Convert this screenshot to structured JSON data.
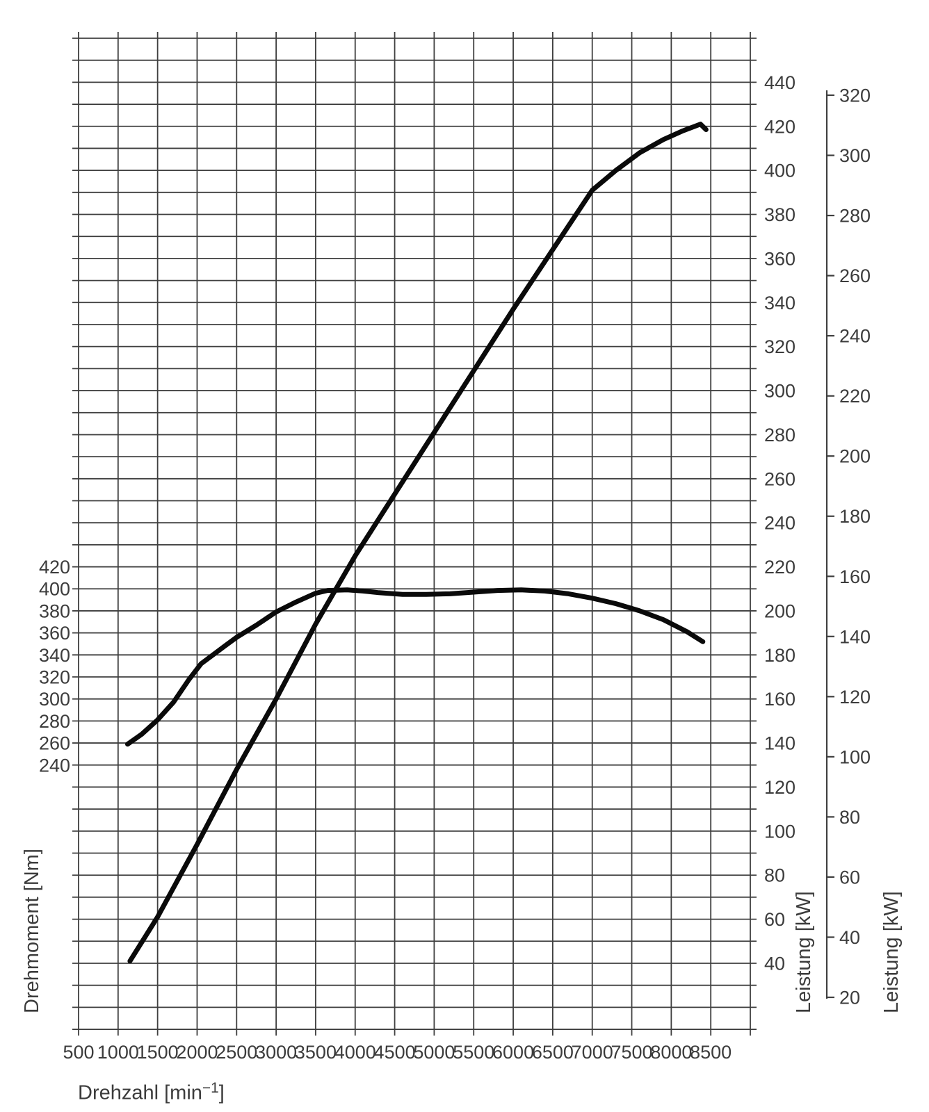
{
  "colors": {
    "background": "#ffffff",
    "grid": "#3f3f3f",
    "curve": "#0a0a0a",
    "text": "#3c3c3c"
  },
  "chart_data": {
    "type": "line",
    "title": "",
    "x": {
      "label": "Drehzahl [min⁻¹]",
      "label_prefix": "Drehzahl [min",
      "label_sup": "−1",
      "label_suffix": "]",
      "min": 500,
      "max": 9000,
      "gridline_step": 500,
      "tick_labels": [
        "500",
        "1000",
        "1500",
        "2000",
        "2500",
        "3000",
        "3500",
        "4000",
        "4500",
        "5000",
        "5500",
        "6000",
        "6500",
        "7000",
        "7500",
        "8000",
        "8500"
      ]
    },
    "y_left": {
      "label": "Drehmoment [Nm]",
      "unit": "Nm",
      "nm_per_gridrow": 20,
      "tick_labels": [
        "420",
        "400",
        "380",
        "360",
        "340",
        "320",
        "300",
        "280",
        "260",
        "240"
      ]
    },
    "y_right_inner": {
      "label": "Leistung [kW]",
      "min": 40,
      "max": 440,
      "tick_step": 10,
      "label_step": 20,
      "tick_labels": [
        "440",
        "420",
        "400",
        "380",
        "360",
        "340",
        "320",
        "300",
        "280",
        "260",
        "240",
        "220",
        "200",
        "180",
        "160",
        "140",
        "120",
        "100",
        "80",
        "60",
        "40"
      ]
    },
    "y_right_outer": {
      "label": "Leistung [kW]",
      "min": 20,
      "max": 320,
      "label_step": 20,
      "tick_labels": [
        "320",
        "300",
        "280",
        "260",
        "240",
        "220",
        "200",
        "180",
        "160",
        "140",
        "120",
        "100",
        "80",
        "60",
        "40",
        "20"
      ]
    },
    "grid": {
      "columns": 17,
      "rows": 45
    },
    "series": [
      {
        "id": "torque-curve",
        "name": "Drehmoment",
        "unit": "Nm",
        "axis": "y_left",
        "peak": "≈399 Nm @ 3700–6300 min⁻¹",
        "points": [
          [
            1120,
            259
          ],
          [
            1300,
            268
          ],
          [
            1500,
            281
          ],
          [
            1700,
            297
          ],
          [
            1900,
            318
          ],
          [
            2050,
            332
          ],
          [
            2200,
            340
          ],
          [
            2350,
            348
          ],
          [
            2500,
            356
          ],
          [
            2750,
            367
          ],
          [
            3000,
            379
          ],
          [
            3250,
            388
          ],
          [
            3500,
            396
          ],
          [
            3650,
            398.5
          ],
          [
            3900,
            399
          ],
          [
            4100,
            398
          ],
          [
            4300,
            396.5
          ],
          [
            4600,
            395
          ],
          [
            4900,
            395
          ],
          [
            5200,
            395.5
          ],
          [
            5500,
            397
          ],
          [
            5800,
            398.5
          ],
          [
            6100,
            399
          ],
          [
            6400,
            398
          ],
          [
            6700,
            395.5
          ],
          [
            7000,
            391.5
          ],
          [
            7300,
            386.5
          ],
          [
            7600,
            380
          ],
          [
            7900,
            372
          ],
          [
            8200,
            361
          ],
          [
            8400,
            352
          ]
        ]
      },
      {
        "id": "power-curve",
        "name": "Leistung",
        "unit": "kW",
        "axis": "y_right_inner",
        "peak": "≈420 @ 8300 min⁻¹",
        "points": [
          [
            1150,
            41
          ],
          [
            1500,
            61
          ],
          [
            2000,
            94
          ],
          [
            2500,
            128
          ],
          [
            3000,
            160
          ],
          [
            3500,
            194
          ],
          [
            4000,
            225
          ],
          [
            4500,
            253
          ],
          [
            5000,
            281
          ],
          [
            5500,
            309
          ],
          [
            6000,
            337
          ],
          [
            6500,
            364
          ],
          [
            7000,
            391
          ],
          [
            7300,
            400
          ],
          [
            7600,
            408
          ],
          [
            7900,
            414
          ],
          [
            8150,
            418
          ],
          [
            8370,
            421
          ],
          [
            8440,
            418.5
          ]
        ]
      }
    ]
  }
}
